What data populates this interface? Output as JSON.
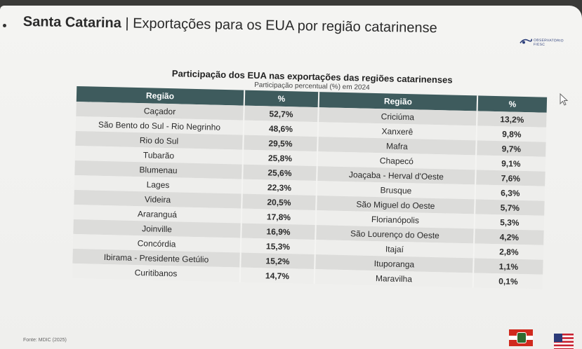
{
  "slide": {
    "title_bold": "Santa Catarina",
    "title_rest": " | Exportações para os EUA por região catarinense",
    "logo_text": "OBSERVATÓRIO FIESC",
    "source": "Fonte: MDIC (2025)"
  },
  "table": {
    "title": "Participação dos EUA nas exportações das regiões catarinenses",
    "subtitle": "Participação percentual (%) em 2024",
    "headers": [
      "Região",
      "%",
      "Região",
      "%"
    ],
    "rows": [
      {
        "r1": "Caçador",
        "p1": "52,7%",
        "r2": "Criciúma",
        "p2": "13,2%"
      },
      {
        "r1": "São Bento do Sul - Rio Negrinho",
        "p1": "48,6%",
        "r2": "Xanxerê",
        "p2": "9,8%"
      },
      {
        "r1": "Rio do Sul",
        "p1": "29,5%",
        "r2": "Mafra",
        "p2": "9,7%"
      },
      {
        "r1": "Tubarão",
        "p1": "25,8%",
        "r2": "Chapecó",
        "p2": "9,1%"
      },
      {
        "r1": "Blumenau",
        "p1": "25,6%",
        "r2": "Joaçaba - Herval d'Oeste",
        "p2": "7,6%"
      },
      {
        "r1": "Lages",
        "p1": "22,3%",
        "r2": "Brusque",
        "p2": "6,3%"
      },
      {
        "r1": "Videira",
        "p1": "20,5%",
        "r2": "São Miguel do Oeste",
        "p2": "5,7%"
      },
      {
        "r1": "Araranguá",
        "p1": "17,8%",
        "r2": "Florianópolis",
        "p2": "5,3%"
      },
      {
        "r1": "Joinville",
        "p1": "16,9%",
        "r2": "São Lourenço do Oeste",
        "p2": "4,2%"
      },
      {
        "r1": "Concórdia",
        "p1": "15,3%",
        "r2": "Itajaí",
        "p2": "2,8%"
      },
      {
        "r1": "Ibirama - Presidente Getúlio",
        "p1": "15,2%",
        "r2": "Ituporanga",
        "p2": "1,1%"
      },
      {
        "r1": "Curitibanos",
        "p1": "14,7%",
        "r2": "Maravilha",
        "p2": "0,1%"
      }
    ]
  },
  "colors": {
    "header_bg": "#3e5b5d",
    "row_dark": "#dcdcda",
    "row_light": "#eeeeec"
  },
  "icons": [
    "bullet-icon",
    "cursor-icon",
    "santa-catarina-flag-icon",
    "usa-flag-icon"
  ]
}
